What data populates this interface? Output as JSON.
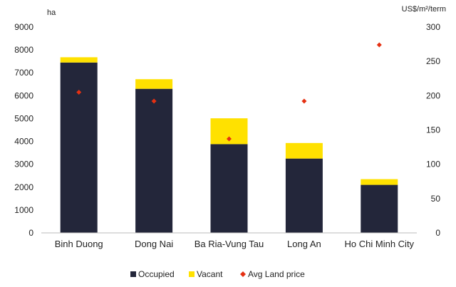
{
  "chart_data": {
    "type": "bar",
    "stacked": true,
    "y_unit_left": "ha",
    "y_unit_right": "US$/m²/term",
    "categories": [
      "Binh Duong",
      "Dong Nai",
      "Ba Ria-Vung Tau",
      "Long An",
      "Ho Chi Minh City"
    ],
    "series": [
      {
        "name": "Occupied",
        "type": "bar",
        "axis": "left",
        "color": "#23263a",
        "values": [
          7450,
          6300,
          3880,
          3250,
          2100
        ]
      },
      {
        "name": "Vacant",
        "type": "bar",
        "axis": "left",
        "color": "#ffe100",
        "values": [
          230,
          420,
          1130,
          680,
          250
        ]
      },
      {
        "name": "Avg Land price",
        "type": "scatter",
        "marker": "diamond",
        "axis": "right",
        "color": "#e53012",
        "values": [
          205,
          192,
          137,
          192,
          274
        ]
      }
    ],
    "ylim_left": [
      0,
      9000
    ],
    "yticks_left": [
      "0",
      "1000",
      "2000",
      "3000",
      "4000",
      "5000",
      "6000",
      "7000",
      "8000",
      "9000"
    ],
    "ylim_right": [
      0,
      300
    ],
    "yticks_right": [
      "0",
      "50",
      "100",
      "150",
      "200",
      "250",
      "300"
    ],
    "grid": false,
    "legend_position": "bottom"
  }
}
